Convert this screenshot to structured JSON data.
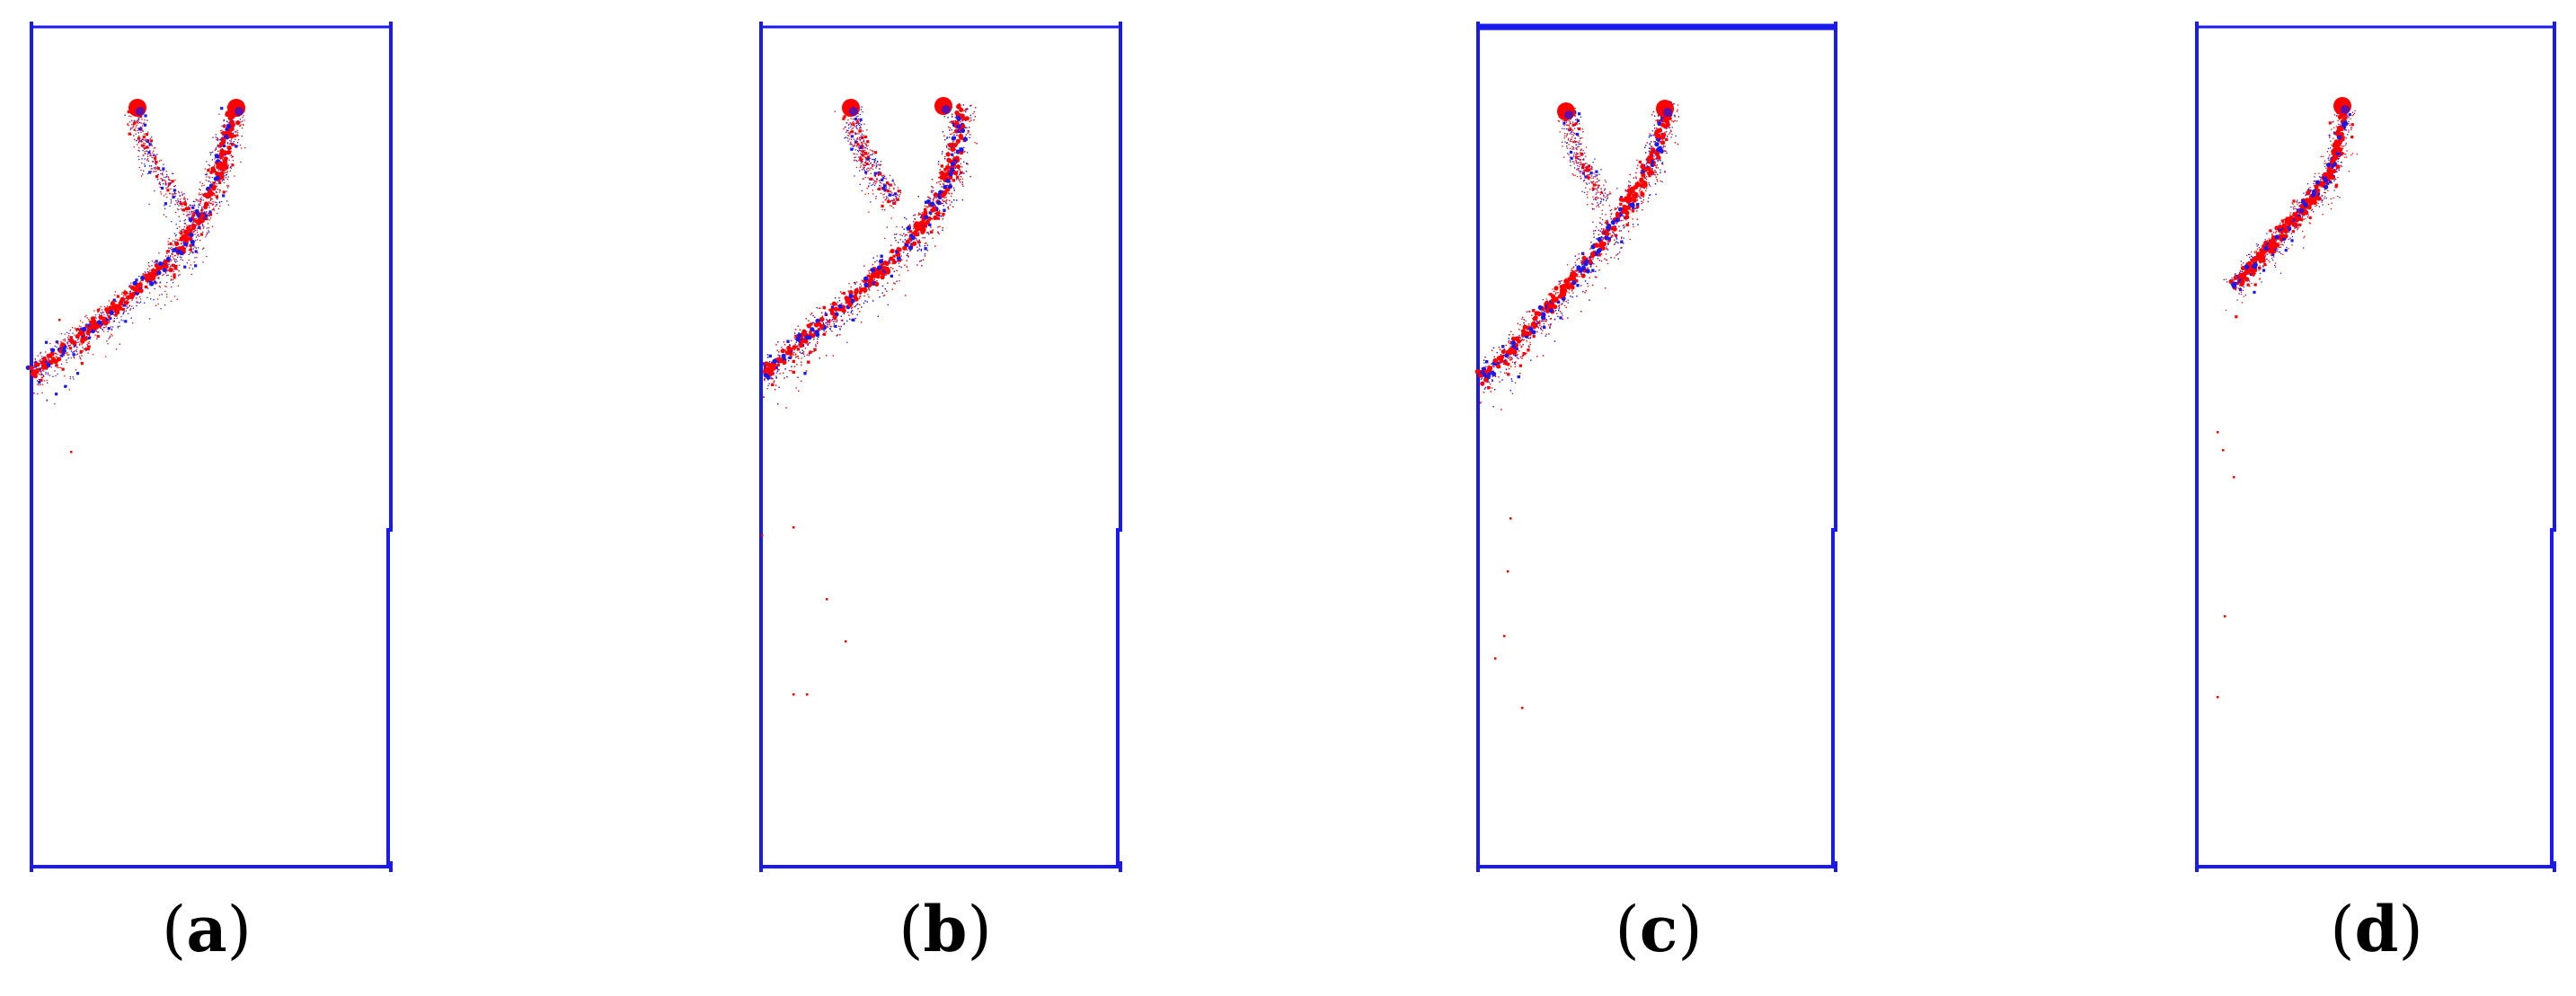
{
  "panels": [
    {
      "id": "a",
      "caption_open": "(",
      "caption_letter": "a",
      "caption_close": ")"
    },
    {
      "id": "b",
      "caption_open": "(",
      "caption_letter": "b",
      "caption_close": ")"
    },
    {
      "id": "c",
      "caption_open": "(",
      "caption_letter": "c",
      "caption_close": ")"
    },
    {
      "id": "d",
      "caption_open": "(",
      "caption_letter": "d",
      "caption_close": ")"
    }
  ],
  "colors": {
    "frame": "#1a1aee",
    "crack_tension": "#ff0000",
    "crack_shear": "#1a1aee",
    "caption_text": "#000000"
  }
}
